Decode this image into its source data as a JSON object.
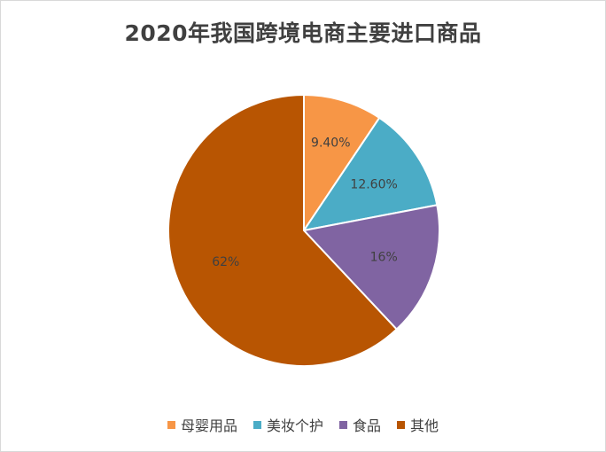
{
  "chart_data": {
    "type": "pie",
    "title": "2020年我国跨境电商主要进口商品",
    "categories": [
      "母婴用品",
      "美妆个护",
      "食品",
      "其他"
    ],
    "values": [
      9.4,
      12.6,
      16,
      62
    ],
    "data_labels": [
      "9.40%",
      "12.60%",
      "16%",
      "62%"
    ],
    "colors": [
      "#F79646",
      "#4BACC6",
      "#8064A2",
      "#B85502"
    ],
    "legend_position": "bottom",
    "start_angle_deg": 0,
    "direction": "clockwise"
  }
}
